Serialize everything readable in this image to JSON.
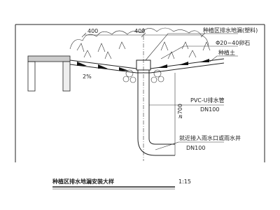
{
  "dimensions": {
    "left": "400",
    "right": "400",
    "depth": "≥700"
  },
  "slope": "2%",
  "labels": {
    "drain": "种植区排水地漏(塑料)",
    "gravel": "Φ20~40卵石",
    "soil": "种植土",
    "pipe": "PVC-U排水管",
    "pipe_size": "DN100",
    "outlet": "就近接入雨水口或雨水井",
    "outlet_size": "DN100"
  },
  "title": "种植区排水地漏安装大样",
  "scale": "1:15"
}
